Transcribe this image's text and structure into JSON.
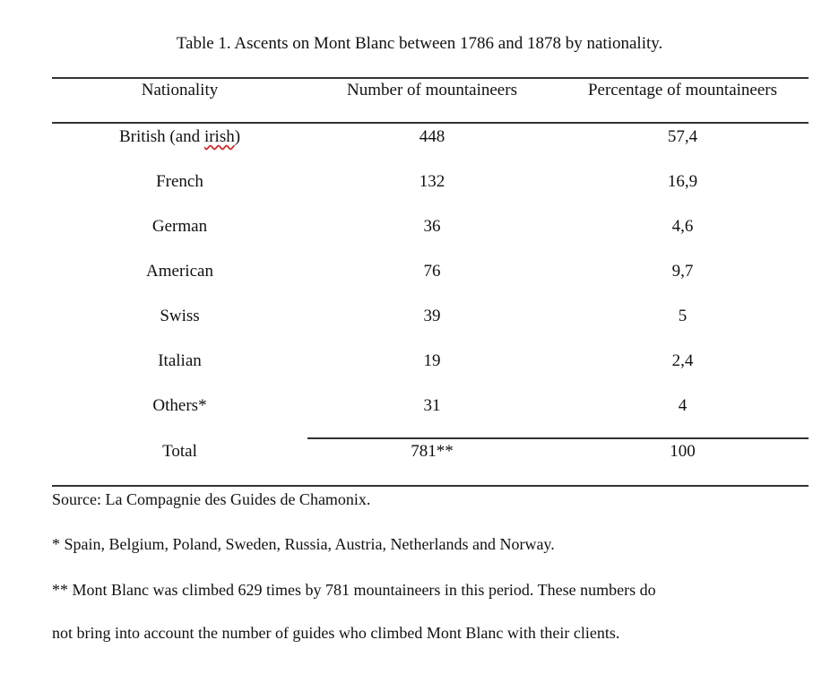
{
  "caption": "Table 1. Ascents on Mont Blanc between 1786 and 1878 by nationality.",
  "table": {
    "headers": [
      "Nationality",
      "Number of mountaineers",
      "Percentage of mountaineers"
    ],
    "rows": [
      {
        "nationality_main": "British (and ",
        "nationality_sub": "irish",
        "nationality_end": ")",
        "count": "448",
        "percent": "57,4"
      },
      {
        "nationality": "French",
        "count": "132",
        "percent": "16,9"
      },
      {
        "nationality": "German",
        "count": "36",
        "percent": "4,6"
      },
      {
        "nationality": "American",
        "count": "76",
        "percent": "9,7"
      },
      {
        "nationality": "Swiss",
        "count": "39",
        "percent": "5"
      },
      {
        "nationality": "Italian",
        "count": "19",
        "percent": "2,4"
      },
      {
        "nationality": "Others*",
        "count": "31",
        "percent": "4"
      }
    ],
    "total": {
      "label": "Total",
      "count": "781**",
      "percent": "100"
    }
  },
  "notes": {
    "source": "Source: La Compagnie des Guides de Chamonix.",
    "footnote1": "* Spain, Belgium, Poland, Sweden, Russia, Austria, Netherlands and Norway.",
    "footnote2_line1": "** Mont Blanc was climbed 629 times by 781 mountaineers in this period. These numbers do",
    "footnote2_line2": "not bring into account the number of guides who climbed Mont Blanc with their clients."
  }
}
